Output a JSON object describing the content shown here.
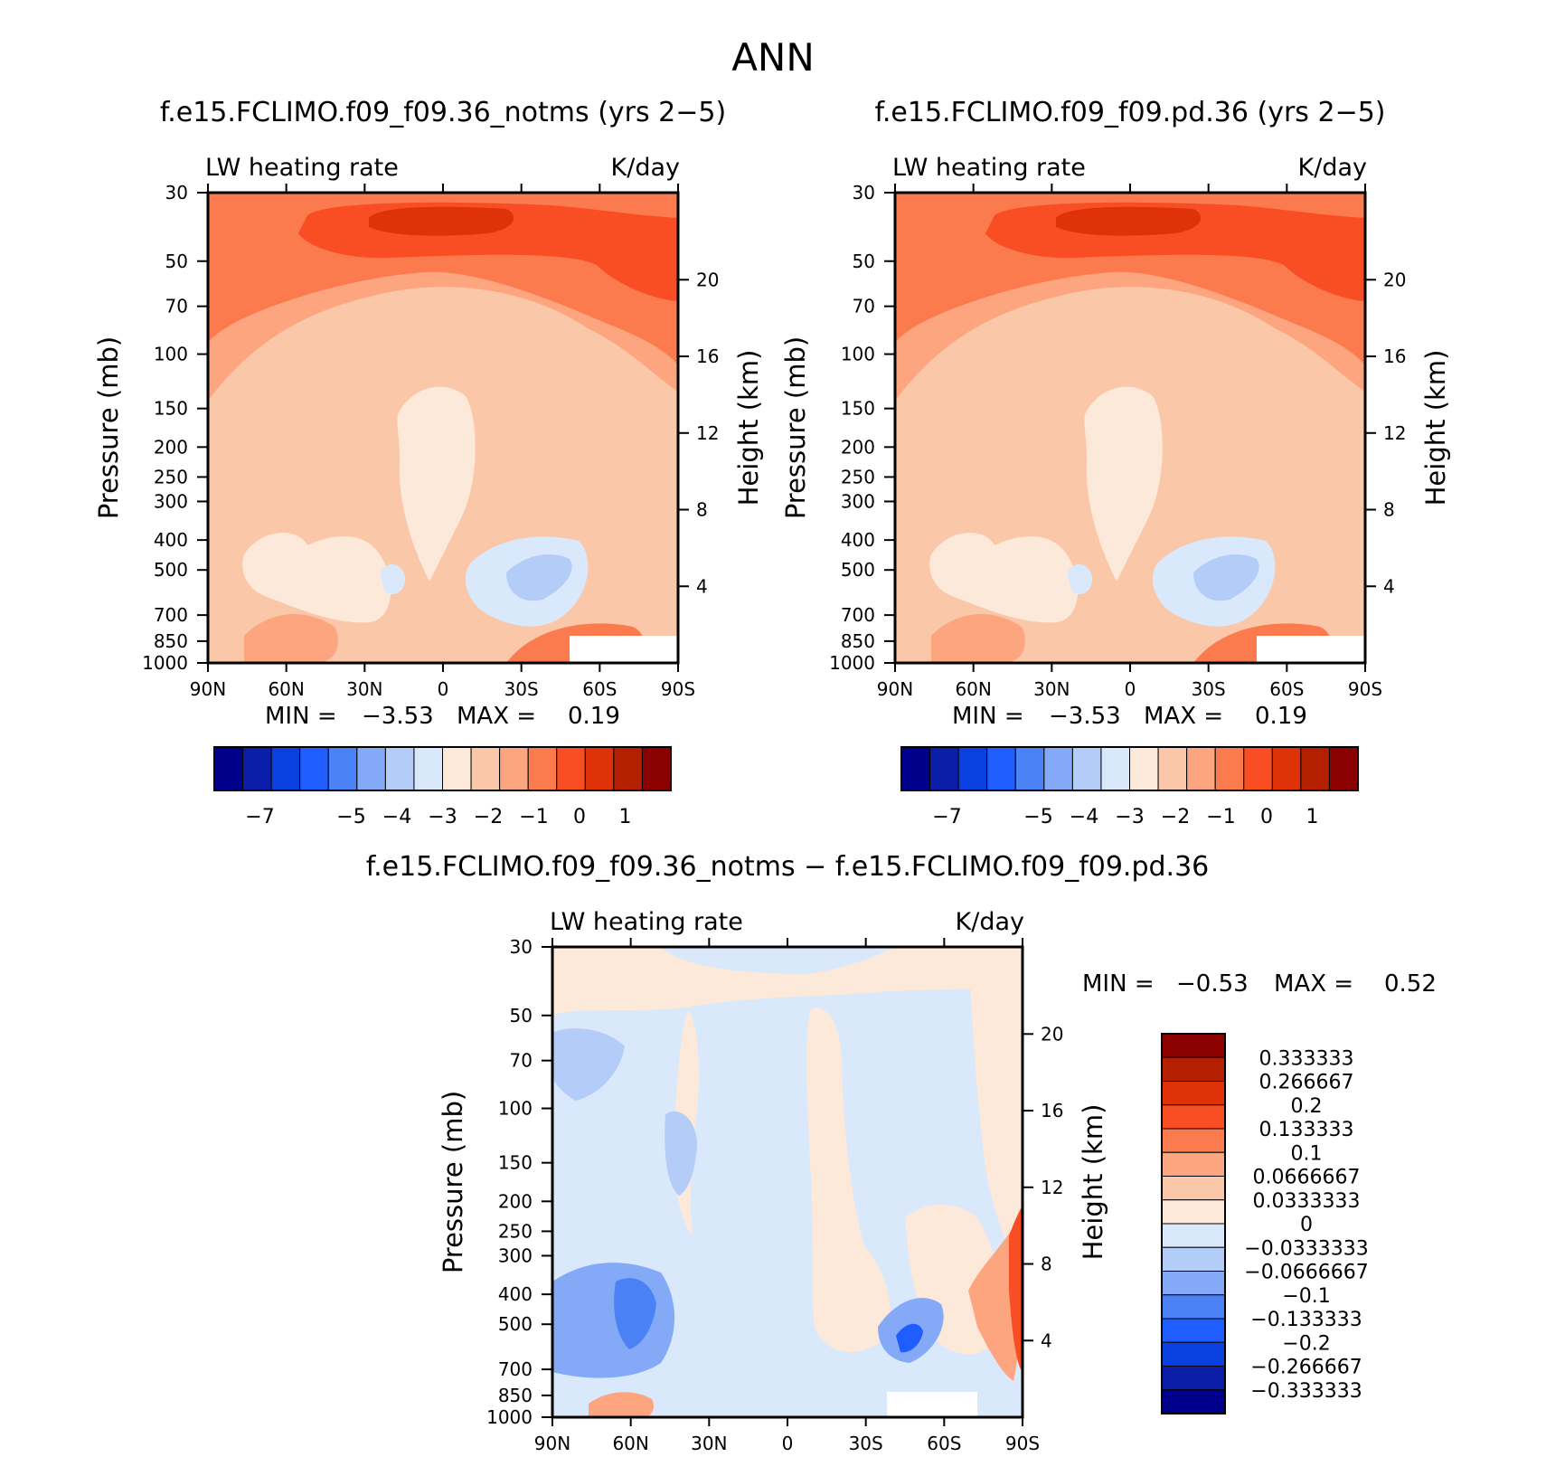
{
  "title": "ANN",
  "colors": {
    "absolute": [
      "#00008b",
      "#0a1ea8",
      "#0a3fe0",
      "#1f5dff",
      "#4a82f5",
      "#84a9f7",
      "#b3cdf8",
      "#d9e9fb",
      "#fde9d9",
      "#fbc7a9",
      "#fca57f",
      "#fb7a4e",
      "#f94e24",
      "#df3208",
      "#b41f00",
      "#8b0000"
    ],
    "difference": [
      "#00008b",
      "#0a1ea8",
      "#0a3fe0",
      "#1f5dff",
      "#4a82f5",
      "#84a9f7",
      "#b3cdf8",
      "#d9e9fb",
      "#fde9d9",
      "#fbc7a9",
      "#fca57f",
      "#fb7a4e",
      "#f94e24",
      "#df3208",
      "#b41f00",
      "#8b0000"
    ]
  },
  "chart_data": [
    {
      "type": "heatmap",
      "title": "f.e15.FCLIMO.f09_f09.36_notms (yrs 2−5)",
      "left_string": "LW heating rate",
      "right_string": "K/day",
      "ylabel": "Pressure (mb)",
      "ylabel_right": "Height (km)",
      "xticks": [
        "90N",
        "60N",
        "30N",
        "0",
        "30S",
        "60S",
        "90S"
      ],
      "yticks": [
        "30",
        "50",
        "70",
        "100",
        "150",
        "200",
        "250",
        "300",
        "400",
        "500",
        "700",
        "850",
        "1000"
      ],
      "yticks_right": [
        "20",
        "16",
        "12",
        "8",
        "4"
      ],
      "ylim": [
        1000,
        30
      ],
      "min_label": "MIN =",
      "min_value": "−3.53",
      "max_label": "MAX =",
      "max_value": "0.19",
      "colorbar_labels": [
        "−7",
        "−5",
        "−4",
        "−3",
        "−2",
        "−1",
        "0",
        "1"
      ]
    },
    {
      "type": "heatmap",
      "title": "f.e15.FCLIMO.f09_f09.pd.36 (yrs 2−5)",
      "left_string": "LW heating rate",
      "right_string": "K/day",
      "ylabel": "Pressure (mb)",
      "ylabel_right": "Height (km)",
      "xticks": [
        "90N",
        "60N",
        "30N",
        "0",
        "30S",
        "60S",
        "90S"
      ],
      "yticks": [
        "30",
        "50",
        "70",
        "100",
        "150",
        "200",
        "250",
        "300",
        "400",
        "500",
        "700",
        "850",
        "1000"
      ],
      "yticks_right": [
        "20",
        "16",
        "12",
        "8",
        "4"
      ],
      "ylim": [
        1000,
        30
      ],
      "min_label": "MIN =",
      "min_value": "−3.53",
      "max_label": "MAX =",
      "max_value": "0.19",
      "colorbar_labels": [
        "−7",
        "−5",
        "−4",
        "−3",
        "−2",
        "−1",
        "0",
        "1"
      ]
    },
    {
      "type": "heatmap",
      "title": "f.e15.FCLIMO.f09_f09.36_notms − f.e15.FCLIMO.f09_f09.pd.36",
      "left_string": "LW heating rate",
      "right_string": "K/day",
      "ylabel": "Pressure (mb)",
      "ylabel_right": "Height (km)",
      "xticks": [
        "90N",
        "60N",
        "30N",
        "0",
        "30S",
        "60S",
        "90S"
      ],
      "yticks": [
        "30",
        "50",
        "70",
        "100",
        "150",
        "200",
        "250",
        "300",
        "400",
        "500",
        "700",
        "850",
        "1000"
      ],
      "yticks_right": [
        "20",
        "16",
        "12",
        "8",
        "4"
      ],
      "ylim": [
        1000,
        30
      ],
      "min_label": "MIN =",
      "min_value": "−0.53",
      "max_label": "MAX =",
      "max_value": "0.52",
      "colorbar_labels": [
        "0.333333",
        "0.266667",
        "0.2",
        "0.133333",
        "0.1",
        "0.0666667",
        "0.0333333",
        "0",
        "−0.0333333",
        "−0.0666667",
        "−0.1",
        "−0.133333",
        "−0.2",
        "−0.266667",
        "−0.333333"
      ]
    }
  ]
}
